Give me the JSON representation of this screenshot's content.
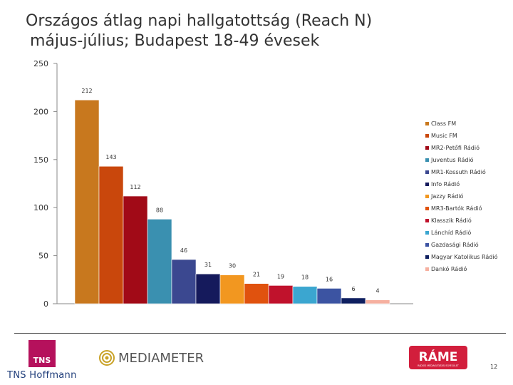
{
  "title": {
    "line1": "Országos átlag napi hallgatottság (Reach N)",
    "line2": "május-július; Budapest 18-49 évesek"
  },
  "chart_data": {
    "type": "bar",
    "categories": [
      "Class FM",
      "Music FM",
      "MR2-Petőfi Rádió",
      "Juventus Rádió",
      "MR1-Kossuth Rádió",
      "Info Rádió",
      "Jazzy Rádió",
      "MR3-Bartók Rádió",
      "Klasszik Rádió",
      "Lánchíd Rádió",
      "Gazdasági Rádió",
      "Magyar Katolikus Rádió",
      "Dankó Rádió"
    ],
    "values": [
      212,
      143,
      112,
      88,
      46,
      31,
      30,
      21,
      19,
      18,
      16,
      6,
      4
    ],
    "colors": [
      "#c8781e",
      "#c9470c",
      "#a10a17",
      "#3a90b0",
      "#3b4890",
      "#151a5c",
      "#f29720",
      "#e0520e",
      "#c0122c",
      "#3ba6d0",
      "#3c54a2",
      "#0f1f60",
      "#f6b0a0"
    ],
    "ylim": [
      0,
      250
    ],
    "yticks": [
      0,
      50,
      100,
      150,
      200,
      250
    ],
    "legend_position": "right",
    "grid": false
  },
  "footer": {
    "tns_logo": "TNS",
    "tns_name": "TNS Hoffmann",
    "mediameter": "MEDIAMETER",
    "rame": "RÁME",
    "rame_sub": "RÁDIÓS MÉDIAKUTATÁSI EGYESÜLET",
    "page_number": "12"
  },
  "icons": {
    "mediameter": "mediameter-logo-icon",
    "rame": "rame-logo-icon"
  }
}
